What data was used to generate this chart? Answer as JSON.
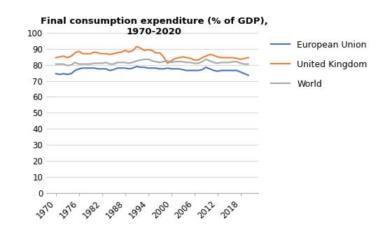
{
  "title": "Final consumption expenditure (% of GDP),\n1970-2020",
  "years": [
    1970,
    1971,
    1972,
    1973,
    1974,
    1975,
    1976,
    1977,
    1978,
    1979,
    1980,
    1981,
    1982,
    1983,
    1984,
    1985,
    1986,
    1987,
    1988,
    1989,
    1990,
    1991,
    1992,
    1993,
    1994,
    1995,
    1996,
    1997,
    1998,
    1999,
    2000,
    2001,
    2002,
    2003,
    2004,
    2005,
    2006,
    2007,
    2008,
    2009,
    2010,
    2011,
    2012,
    2013,
    2014,
    2015,
    2016,
    2017,
    2018,
    2019,
    2020
  ],
  "eu": [
    74.5,
    74.0,
    74.5,
    74.0,
    74.5,
    76.5,
    77.5,
    78.0,
    78.0,
    78.0,
    78.0,
    77.5,
    77.5,
    77.5,
    76.5,
    77.0,
    78.0,
    78.0,
    78.0,
    77.5,
    78.0,
    79.0,
    78.5,
    78.5,
    78.0,
    78.0,
    78.0,
    77.5,
    77.5,
    78.0,
    77.5,
    77.5,
    77.5,
    77.0,
    76.5,
    76.5,
    76.5,
    76.5,
    77.0,
    78.5,
    77.5,
    76.5,
    76.0,
    76.5,
    76.5,
    76.5,
    76.5,
    76.5,
    75.5,
    74.5,
    73.5
  ],
  "uk": [
    84.5,
    85.0,
    85.5,
    84.5,
    85.5,
    87.5,
    88.5,
    87.0,
    87.0,
    87.0,
    88.0,
    87.5,
    87.0,
    87.0,
    86.5,
    87.0,
    87.5,
    88.0,
    89.0,
    88.0,
    89.0,
    91.5,
    90.5,
    89.0,
    89.5,
    89.0,
    87.5,
    87.5,
    85.0,
    81.0,
    82.5,
    84.0,
    84.5,
    85.0,
    84.5,
    84.0,
    83.0,
    83.0,
    84.5,
    85.5,
    86.5,
    86.0,
    85.0,
    84.5,
    84.5,
    84.5,
    84.5,
    84.0,
    83.5,
    84.0,
    84.5
  ],
  "world": [
    80.5,
    80.5,
    80.5,
    79.5,
    80.0,
    81.5,
    80.5,
    80.5,
    80.5,
    80.5,
    81.0,
    81.0,
    81.0,
    81.5,
    80.5,
    80.5,
    81.5,
    81.5,
    81.5,
    81.0,
    81.5,
    82.5,
    83.0,
    83.5,
    83.5,
    82.5,
    82.0,
    81.5,
    82.0,
    82.5,
    81.5,
    82.0,
    82.0,
    82.0,
    81.5,
    81.5,
    81.0,
    81.0,
    82.0,
    83.5,
    82.5,
    81.5,
    81.0,
    81.5,
    81.5,
    81.5,
    82.0,
    82.0,
    81.0,
    80.5,
    80.5
  ],
  "eu_color": "#4472C4",
  "uk_color": "#ED7D31",
  "world_color": "#A5A5A5",
  "ylim": [
    0,
    100
  ],
  "yticks": [
    0,
    10,
    20,
    30,
    40,
    50,
    60,
    70,
    80,
    90,
    100
  ],
  "xticks": [
    1970,
    1976,
    1982,
    1988,
    1994,
    2000,
    2006,
    2012,
    2018
  ],
  "legend_labels": [
    "European Union",
    "United Kingdom",
    "World"
  ],
  "background_color": "#ffffff",
  "grid_color": "#d4d4d4"
}
